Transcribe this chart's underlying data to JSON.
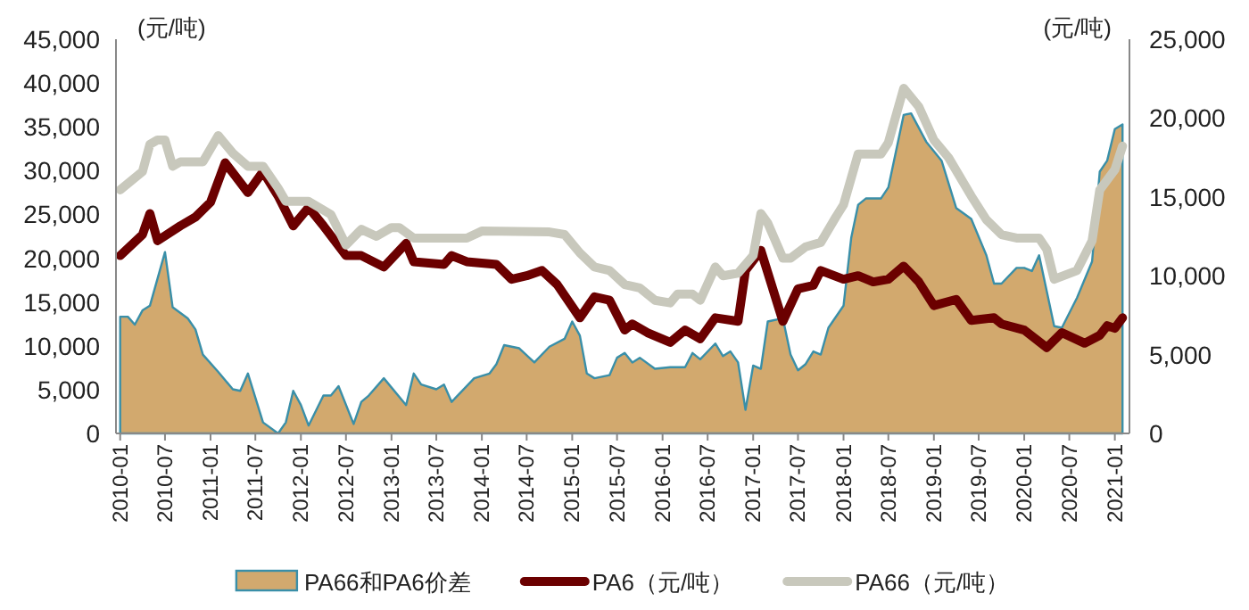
{
  "chart_data": {
    "type": "line",
    "ylabel": "(元/吨)",
    "y2label": "(元/吨)",
    "legend": "bottom",
    "xlim": [
      "2009-12-15",
      "2021-03-01"
    ],
    "xticks": [
      "2010-01",
      "2010-07",
      "2011-01",
      "2011-07",
      "2012-01",
      "2012-07",
      "2013-01",
      "2013-07",
      "2014-01",
      "2014-07",
      "2015-01",
      "2015-07",
      "2016-01",
      "2016-07",
      "2017-01",
      "2017-07",
      "2018-01",
      "2018-07",
      "2019-01",
      "2019-07",
      "2020-01",
      "2020-07",
      "2021-01"
    ],
    "ylim": [
      0,
      45000
    ],
    "yticks": [
      {
        "value": 0,
        "label": "0"
      },
      {
        "value": 5000,
        "label": "5,000"
      },
      {
        "value": 10000,
        "label": "10,000"
      },
      {
        "value": 15000,
        "label": "15,000"
      },
      {
        "value": 20000,
        "label": "20,000"
      },
      {
        "value": 25000,
        "label": "25,000"
      },
      {
        "value": 30000,
        "label": "30,000"
      },
      {
        "value": 35000,
        "label": "35,000"
      },
      {
        "value": 40000,
        "label": "40,000"
      },
      {
        "value": 45000,
        "label": "45,000"
      }
    ],
    "y2lim": [
      0,
      25000
    ],
    "y2ticks": [
      {
        "value": 0,
        "label": "0"
      },
      {
        "value": 5000,
        "label": "5,000"
      },
      {
        "value": 10000,
        "label": "10,000"
      },
      {
        "value": 15000,
        "label": "15,000"
      },
      {
        "value": 20000,
        "label": "20,000"
      },
      {
        "value": 25000,
        "label": "25,000"
      }
    ],
    "series": [
      {
        "type": "area",
        "axis": "y2",
        "name": "PA66和PA6价差",
        "color": "#d2a96e",
        "x": [
          "2010-01",
          "2010-02",
          "2010-03",
          "2010-04",
          "2010-05",
          "2010-07",
          "2010-08",
          "2010-10",
          "2010-11",
          "2010-12",
          "2011-02",
          "2011-04",
          "2011-05",
          "2011-06",
          "2011-08",
          "2011-10",
          "2011-11",
          "2011-12",
          "2012-01",
          "2012-02",
          "2012-04",
          "2012-05",
          "2012-06",
          "2012-08",
          "2012-09",
          "2012-10",
          "2012-12",
          "2013-03",
          "2013-04",
          "2013-05",
          "2013-07",
          "2013-08",
          "2013-09",
          "2013-12",
          "2014-02",
          "2014-03",
          "2014-04",
          "2014-06",
          "2014-08",
          "2014-10",
          "2014-12",
          "2015-01",
          "2015-02",
          "2015-03",
          "2015-04",
          "2015-06",
          "2015-07",
          "2015-08",
          "2015-09",
          "2015-10",
          "2015-12",
          "2016-02",
          "2016-04",
          "2016-05",
          "2016-06",
          "2016-08",
          "2016-09",
          "2016-10",
          "2016-11",
          "2016-12",
          "2017-01",
          "2017-02",
          "2017-03",
          "2017-05",
          "2017-06",
          "2017-07",
          "2017-08",
          "2017-09",
          "2017-10",
          "2017-11",
          "2018-01",
          "2018-02",
          "2018-03",
          "2018-04",
          "2018-06",
          "2018-07",
          "2018-09",
          "2018-10",
          "2018-12",
          "2019-02",
          "2019-04",
          "2019-06",
          "2019-08",
          "2019-09",
          "2019-10",
          "2019-12",
          "2020-01",
          "2020-02",
          "2020-03",
          "2020-05",
          "2020-06",
          "2020-08",
          "2020-10",
          "2020-11",
          "2020-12",
          "2021-01",
          "2021-02"
        ],
        "values": [
          7400,
          7400,
          6900,
          7800,
          8100,
          11500,
          8000,
          7300,
          6600,
          5000,
          3900,
          2800,
          2700,
          3800,
          700,
          0,
          700,
          2700,
          1800,
          500,
          2400,
          2400,
          3000,
          600,
          2000,
          2400,
          3500,
          1800,
          3800,
          3100,
          2800,
          3100,
          2000,
          3500,
          3800,
          4400,
          5600,
          5400,
          4500,
          5500,
          6000,
          7100,
          6200,
          3800,
          3500,
          3700,
          4800,
          5100,
          4500,
          4800,
          4100,
          4200,
          4200,
          5100,
          4700,
          5700,
          4900,
          5200,
          4500,
          1500,
          4300,
          4100,
          7100,
          7300,
          5000,
          4000,
          4400,
          5200,
          5000,
          6700,
          8100,
          12400,
          14500,
          14900,
          14900,
          15600,
          20200,
          20300,
          18500,
          17300,
          14300,
          13600,
          11300,
          9500,
          9500,
          10500,
          10500,
          10300,
          11300,
          6800,
          6700,
          8600,
          10900,
          16600,
          17300,
          19300,
          19600
        ]
      },
      {
        "type": "line",
        "name": "PA6（元/吨）",
        "color": "#6b0000",
        "x": [
          "2010-01",
          "2010-04",
          "2010-05",
          "2010-06",
          "2010-09",
          "2010-11",
          "2011-01",
          "2011-03",
          "2011-06",
          "2011-08",
          "2011-10",
          "2011-12",
          "2012-02",
          "2012-04",
          "2012-07",
          "2012-09",
          "2012-12",
          "2013-03",
          "2013-04",
          "2013-08",
          "2013-09",
          "2013-11",
          "2014-03",
          "2014-05",
          "2014-07",
          "2014-09",
          "2014-11",
          "2015-02",
          "2015-04",
          "2015-06",
          "2015-08",
          "2015-09",
          "2015-11",
          "2016-02",
          "2016-04",
          "2016-06",
          "2016-08",
          "2016-11",
          "2016-12",
          "2017-02",
          "2017-05",
          "2017-07",
          "2017-09",
          "2017-10",
          "2018-01",
          "2018-03",
          "2018-05",
          "2018-07",
          "2018-09",
          "2018-11",
          "2019-01",
          "2019-04",
          "2019-06",
          "2019-09",
          "2019-10",
          "2020-01",
          "2020-04",
          "2020-06",
          "2020-09",
          "2020-11",
          "2020-12",
          "2021-01",
          "2021-02"
        ],
        "values": [
          20300,
          22700,
          25100,
          22000,
          23700,
          24700,
          26400,
          30900,
          27500,
          29900,
          27100,
          23700,
          25800,
          23700,
          20300,
          20300,
          19000,
          21700,
          19600,
          19300,
          20300,
          19600,
          19300,
          17600,
          18000,
          18600,
          17000,
          13200,
          15600,
          15200,
          11800,
          12500,
          11500,
          10400,
          11800,
          10800,
          13200,
          12800,
          18600,
          20900,
          12800,
          16500,
          16900,
          18600,
          17600,
          18000,
          17300,
          17600,
          19100,
          17300,
          14600,
          15300,
          12900,
          13200,
          12500,
          11800,
          9800,
          11500,
          10300,
          11200,
          12300,
          12000,
          13200
        ]
      },
      {
        "type": "line",
        "name": "PA66（元/吨）",
        "color": "#c8c8bc",
        "x": [
          "2010-01",
          "2010-04",
          "2010-05",
          "2010-06",
          "2010-07",
          "2010-08",
          "2010-09",
          "2010-12",
          "2011-02",
          "2011-04",
          "2011-06",
          "2011-08",
          "2011-10",
          "2011-11",
          "2012-02",
          "2012-05",
          "2012-07",
          "2012-09",
          "2012-11",
          "2013-01",
          "2013-02",
          "2013-04",
          "2013-07",
          "2013-11",
          "2014-01",
          "2014-10",
          "2014-12",
          "2015-02",
          "2015-04",
          "2015-06",
          "2015-08",
          "2015-10",
          "2015-12",
          "2016-02",
          "2016-03",
          "2016-05",
          "2016-06",
          "2016-08",
          "2016-09",
          "2016-11",
          "2017-01",
          "2017-02",
          "2017-03",
          "2017-05",
          "2017-06",
          "2017-08",
          "2017-10",
          "2017-12",
          "2018-01",
          "2018-03",
          "2018-06",
          "2018-07",
          "2018-09",
          "2018-11",
          "2019-01",
          "2019-03",
          "2019-06",
          "2019-08",
          "2019-10",
          "2019-12",
          "2020-03",
          "2020-04",
          "2020-05",
          "2020-08",
          "2020-10",
          "2020-11",
          "2021-01",
          "2021-02"
        ],
        "values": [
          27800,
          29900,
          33000,
          33500,
          33500,
          30500,
          31000,
          31000,
          34000,
          32000,
          30500,
          30500,
          28000,
          26500,
          26500,
          25000,
          21500,
          23300,
          22500,
          23500,
          23500,
          22300,
          22300,
          22300,
          23100,
          23000,
          22700,
          20600,
          19000,
          18600,
          17000,
          16600,
          15200,
          14900,
          15900,
          15900,
          15200,
          19000,
          18000,
          18300,
          20300,
          25100,
          24000,
          20000,
          20000,
          21300,
          21800,
          24700,
          26100,
          31900,
          31900,
          33200,
          39400,
          37300,
          33500,
          31500,
          27100,
          24400,
          22700,
          22300,
          22300,
          21000,
          17600,
          18600,
          22000,
          27800,
          30100,
          32800
        ]
      }
    ]
  }
}
